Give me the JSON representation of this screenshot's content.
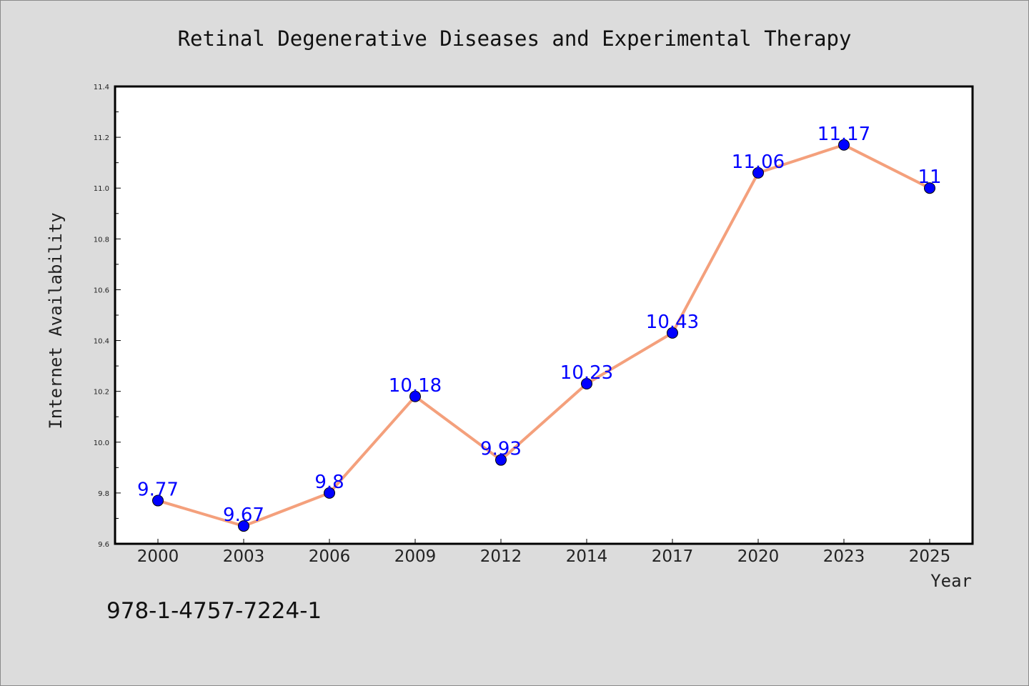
{
  "chart_data": {
    "type": "line",
    "title": "Retinal Degenerative Diseases and Experimental Therapy",
    "xlabel": "Year",
    "ylabel": "Internet Availability",
    "categories": [
      "2000",
      "2003",
      "2006",
      "2009",
      "2012",
      "2014",
      "2017",
      "2020",
      "2023",
      "2025"
    ],
    "series": [
      {
        "values": [
          9.77,
          9.67,
          9.8,
          10.18,
          9.93,
          10.23,
          10.43,
          11.06,
          11.17,
          11.0
        ],
        "labels": [
          "9.77",
          "9.67",
          "9.8",
          "10.18",
          "9.93",
          "10.23",
          "10.43",
          "11.06",
          "11.17",
          "11"
        ],
        "line_color": "#f4a07c",
        "marker_color": "#0000ff"
      }
    ],
    "ylim": [
      9.6,
      11.4
    ],
    "yticks": [
      "9.6",
      "9.8",
      "10.0",
      "10.2",
      "10.4",
      "10.6",
      "10.8",
      "11.0",
      "11.2",
      "11.4"
    ],
    "grid": false,
    "data_label_color": "#0000ff",
    "plot_background": "#ffffff",
    "page_background": "#dcdcdc"
  },
  "isbn": "978-1-4757-7224-1"
}
